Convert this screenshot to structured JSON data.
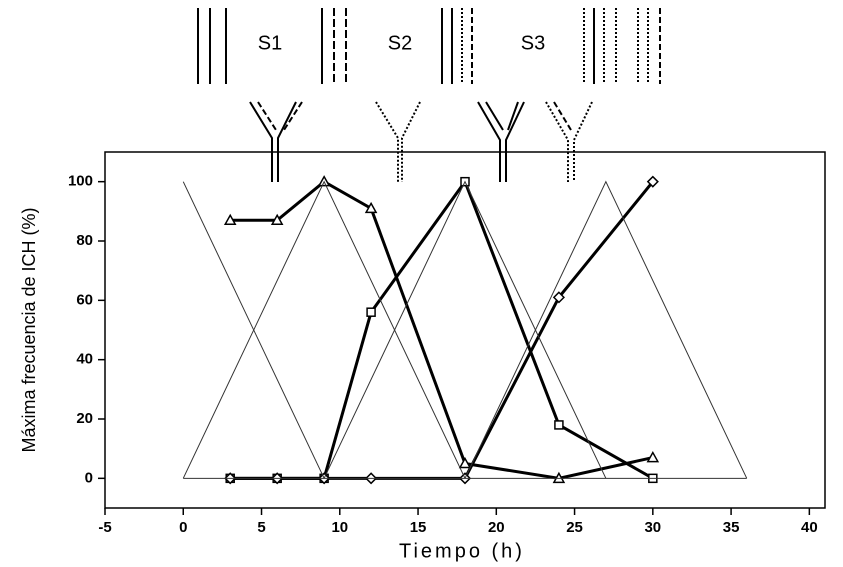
{
  "chart_data": {
    "type": "line",
    "x_label": "Tiempo (h)",
    "y_label": "Máxima frecuencia de ICH (%)",
    "annotations": [
      "S1",
      "S2",
      "S3"
    ],
    "xlim": [
      -5,
      41
    ],
    "xticks": [
      -5,
      0,
      5,
      10,
      15,
      20,
      25,
      30,
      35,
      40
    ],
    "ylim": [
      -10,
      110
    ],
    "yticks": [
      0,
      20,
      40,
      60,
      80,
      100
    ],
    "series": [
      {
        "color": "#000000",
        "marker": "triangle",
        "x": [
          3,
          6,
          9,
          12,
          18,
          24,
          30
        ],
        "values": [
          87,
          87,
          100,
          91,
          5,
          0,
          7
        ]
      },
      {
        "color": "#000000",
        "marker": "square",
        "x": [
          3,
          6,
          9,
          12,
          18,
          24,
          30
        ],
        "values": [
          0,
          0,
          0,
          56,
          100,
          18,
          0
        ]
      },
      {
        "color": "#000000",
        "marker": "diamond",
        "x": [
          3,
          6,
          9,
          12,
          18,
          24,
          30
        ],
        "values": [
          0,
          0,
          0,
          0,
          0,
          61,
          100
        ]
      },
      {
        "color": "#333333",
        "x": [
          0,
          9
        ],
        "values": [
          100,
          0
        ]
      },
      {
        "color": "#333333",
        "x": [
          0,
          9,
          18
        ],
        "values": [
          0,
          100,
          0
        ]
      },
      {
        "color": "#333333",
        "x": [
          9,
          18,
          27
        ],
        "values": [
          0,
          100,
          0
        ]
      },
      {
        "color": "#333333",
        "x": [
          18,
          27,
          36
        ],
        "values": [
          0,
          100,
          0
        ]
      },
      {
        "color": "#333333",
        "x": [
          0,
          36
        ],
        "values": [
          0,
          0
        ]
      }
    ]
  }
}
